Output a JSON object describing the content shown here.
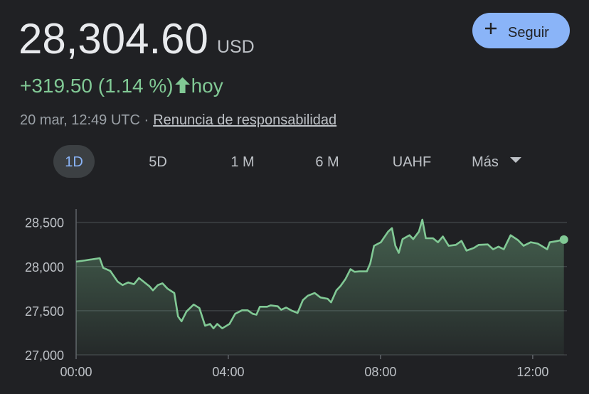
{
  "price": "28,304.60",
  "currency": "USD",
  "change": "+319.50 (1.14 %)",
  "period": "hoy",
  "timestamp": "20 mar, 12:49 UTC ·",
  "disclaimer": "Renuncia de responsabilidad",
  "follow_button": "Seguir",
  "tabs": [
    "1D",
    "5D",
    "1 M",
    "6 M",
    "UAHF",
    "Más"
  ],
  "chart_data": {
    "type": "area",
    "color": "#81c995",
    "grid": true,
    "x": [
      0,
      0.24,
      0.62,
      0.71,
      0.9,
      1.09,
      1.22,
      1.37,
      1.52,
      1.65,
      1.74,
      1.93,
      2.02,
      2.15,
      2.27,
      2.4,
      2.58,
      2.68,
      2.77,
      2.9,
      3.09,
      3.24,
      3.39,
      3.52,
      3.61,
      3.71,
      3.84,
      4.03,
      4.18,
      4.36,
      4.51,
      4.64,
      4.74,
      4.83,
      5.02,
      5.11,
      5.3,
      5.39,
      5.52,
      5.67,
      5.82,
      5.96,
      6.09,
      6.27,
      6.42,
      6.61,
      6.7,
      6.84,
      6.95,
      7.08,
      7.21,
      7.32,
      7.45,
      7.64,
      7.73,
      7.83,
      8.01,
      8.2,
      8.3,
      8.39,
      8.48,
      8.58,
      8.76,
      8.86,
      9.01,
      9.1,
      9.19,
      9.38,
      9.51,
      9.64,
      9.79,
      9.98,
      10.13,
      10.26,
      10.45,
      10.58,
      10.82,
      10.96,
      11.1,
      11.24,
      11.42,
      11.61,
      11.76,
      11.95,
      12.13,
      12.23,
      12.38,
      12.45,
      12.6,
      12.82
    ],
    "values": [
      28055,
      28070,
      28095,
      27985,
      27950,
      27830,
      27790,
      27820,
      27800,
      27870,
      27840,
      27775,
      27730,
      27790,
      27810,
      27750,
      27700,
      27435,
      27380,
      27490,
      27570,
      27530,
      27330,
      27350,
      27300,
      27350,
      27300,
      27350,
      27465,
      27505,
      27505,
      27465,
      27455,
      27545,
      27545,
      27560,
      27550,
      27510,
      27535,
      27500,
      27475,
      27620,
      27670,
      27700,
      27650,
      27635,
      27595,
      27730,
      27780,
      27860,
      27970,
      27940,
      27945,
      27945,
      28035,
      28235,
      28275,
      28395,
      28435,
      28235,
      28155,
      28310,
      28355,
      28310,
      28395,
      28530,
      28320,
      28320,
      28275,
      28340,
      28235,
      28245,
      28290,
      28180,
      28210,
      28245,
      28250,
      28195,
      28225,
      28195,
      28355,
      28300,
      28235,
      28275,
      28260,
      28235,
      28195,
      28275,
      28285,
      28304.6
    ],
    "xlim": [
      0,
      12.9
    ],
    "ylim": [
      27000,
      28650
    ],
    "xticks": [
      {
        "value": 0,
        "label": "00:00"
      },
      {
        "value": 4,
        "label": "04:00"
      },
      {
        "value": 8,
        "label": "08:00"
      },
      {
        "value": 12,
        "label": "12:00"
      }
    ],
    "yticks": [
      {
        "value": 27000,
        "label": "27,000"
      },
      {
        "value": 27500,
        "label": "27,500"
      },
      {
        "value": 28000,
        "label": "28,000"
      },
      {
        "value": 28500,
        "label": "28,500"
      }
    ]
  }
}
